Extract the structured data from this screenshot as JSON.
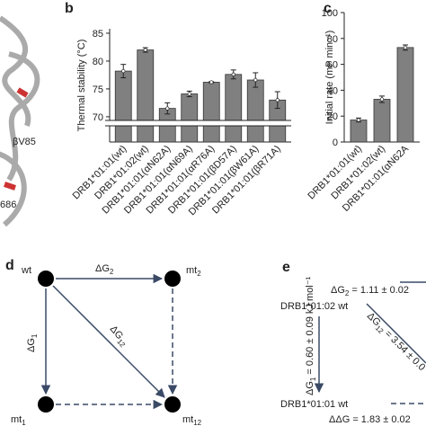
{
  "protein_labels": [
    "βV85",
    "686"
  ],
  "panel_b": {
    "letter": "b",
    "type": "bar",
    "ylabel": "Thermal stability (°C)",
    "categories": [
      "DRB1*01:01(wt)",
      "DRB1*01:02(wt)",
      "DRB1*01:01(αN62A)",
      "DRB1*01:01(αN69A)",
      "DRB1*01:01(αR76A)",
      "DRB1*01:01(βD57A)",
      "DRB1*01:01(βW61A)",
      "DRB1*01:01(βR71A)"
    ],
    "values": [
      78.2,
      82.0,
      71.5,
      74.1,
      76.2,
      77.6,
      76.6,
      73.0
    ],
    "errors": [
      1.2,
      0.4,
      1.0,
      0.5,
      0.1,
      0.8,
      1.3,
      1.5
    ],
    "color": "#808080",
    "ylim": [
      69.5,
      85.8
    ],
    "yticks": [
      70,
      75,
      80,
      85
    ],
    "axis_break": true
  },
  "panel_c": {
    "letter": "c",
    "type": "bar",
    "ylabel": "Initial rate (mP min⁻¹)",
    "categories": [
      "DRB1*01:01(wt)",
      "DRB1*01:02(wt)",
      "DRB1*01:01(αN62A"
    ],
    "values": [
      17,
      33,
      73
    ],
    "errors": [
      1.5,
      2.5,
      2
    ],
    "color": "#808080",
    "ylim": [
      0,
      100
    ],
    "yticks": [
      0,
      20,
      40,
      60,
      80,
      100
    ]
  },
  "panel_d": {
    "letter": "d",
    "nodes": [
      "wt",
      "mt",
      "mt",
      "mt"
    ],
    "node_subs": [
      "",
      "2",
      "1",
      "12"
    ],
    "edges": [
      {
        "symbol": "ΔG",
        "sub": "2"
      },
      {
        "symbol": "ΔG",
        "sub": "1"
      },
      {
        "symbol": "ΔG",
        "sub": "12"
      }
    ]
  },
  "panel_e": {
    "letter": "e",
    "top_node": "DRB1*01:02 wt",
    "bottom_node": "DRB1*01:01 wt",
    "g2": {
      "symbol": "ΔG",
      "sub": "2",
      "text": " = 1.11 ± 0.02"
    },
    "g1": {
      "symbol": "ΔG",
      "sub": "1",
      "text": " = 0.60 ± 0.09 kJ mol⁻¹"
    },
    "g12": {
      "symbol": "ΔG",
      "sub": "12",
      "text": " = 3.54 ± 0.0"
    },
    "ddg": {
      "symbol": "ΔΔG",
      "text": " = 1.83 ± 0.02"
    }
  }
}
